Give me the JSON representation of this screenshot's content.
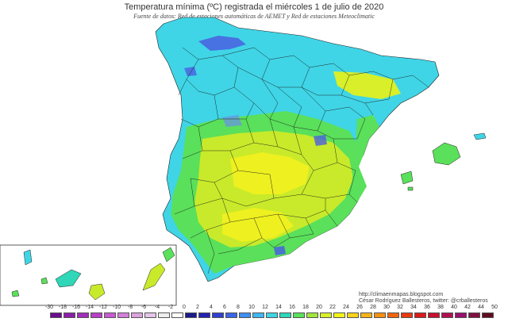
{
  "title": "Temperatura mínima (ºC) registrada el miércoles 1 de julio de 2020",
  "subtitle": "Fuente de datos: Red de estaciones automáticas de AEMET y Red de estaciones Meteoclimatic",
  "credits": {
    "url": "http://climaenmapas.blogspot.com",
    "author": "César Rodríguez Ballesteros, twitter: @crballesteros"
  },
  "legend": {
    "labels": [
      "-30",
      "-18",
      "-16",
      "-14",
      "-12",
      "-10",
      "-8",
      "-6",
      "-4",
      "-2",
      "0",
      "2",
      "4",
      "6",
      "8",
      "10",
      "12",
      "14",
      "16",
      "18",
      "20",
      "22",
      "24",
      "26",
      "28",
      "30",
      "32",
      "34",
      "36",
      "38",
      "40",
      "42",
      "44",
      "50"
    ],
    "colors": [
      "#6a0d8f",
      "#8a1fa8",
      "#a02fb8",
      "#b93fc6",
      "#c85bd1",
      "#d47fd9",
      "#dba3de",
      "#e3c6e6",
      "#eeeeee",
      "#ffffff",
      "#1a1a8c",
      "#2323b0",
      "#2f3fd0",
      "#3a64e6",
      "#3f8ff0",
      "#3fb7f2",
      "#3fd5e6",
      "#2fd6b8",
      "#5ae05a",
      "#a0e63a",
      "#d8ef2a",
      "#f2f21a",
      "#f5d41a",
      "#f5b31a",
      "#f59012",
      "#f0660f",
      "#e83a0f",
      "#dc1a1a",
      "#c8102f",
      "#b0104f",
      "#981070",
      "#801040",
      "#600a20"
    ]
  },
  "map_colors": {
    "sea": "#ffffff",
    "cold_blue": "#4a5fe0",
    "cyan": "#3fd5e6",
    "teal": "#2fd6b8",
    "green": "#5ae05a",
    "yellow_green": "#c8ea2a",
    "yellow": "#eef020",
    "borders": "#1a1a1a"
  }
}
